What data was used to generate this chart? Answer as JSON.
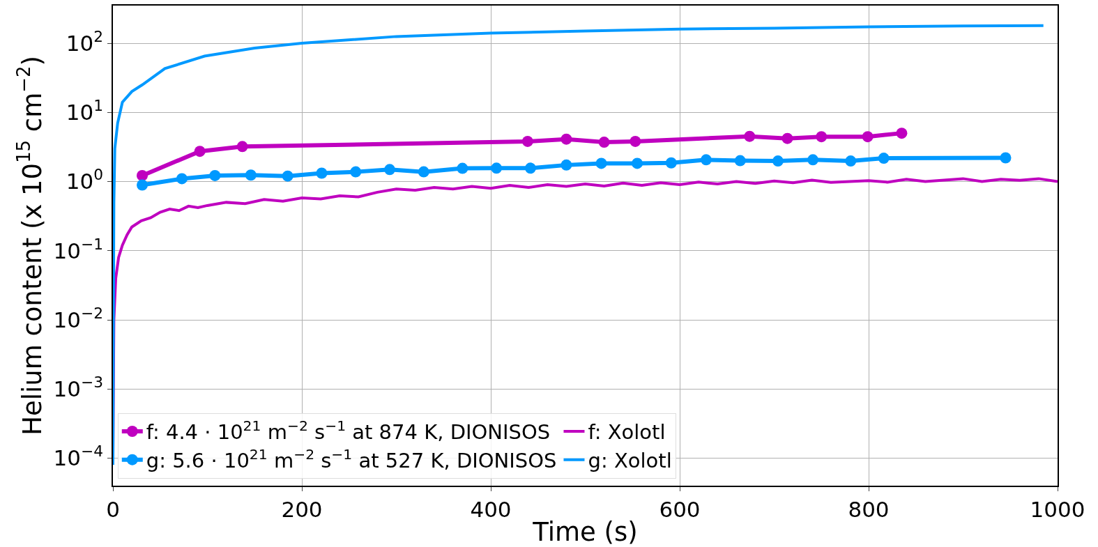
{
  "chart_data": {
    "type": "line",
    "xlabel": "Time (s)",
    "ylabel": "Helium content (x 10$^{15}$ cm$^{−2}$)",
    "xlim": [
      0,
      1000
    ],
    "xticks": [
      0,
      200,
      400,
      600,
      800,
      1000
    ],
    "ylim": [
      4e-05,
      350
    ],
    "yticks": [
      {
        "value": 0.0001,
        "label": "10$^{−4}$"
      },
      {
        "value": 0.001,
        "label": "10$^{−3}$"
      },
      {
        "value": 0.01,
        "label": "10$^{−2}$"
      },
      {
        "value": 0.1,
        "label": "10$^{−1}$"
      },
      {
        "value": 1,
        "label": "10$^{0}$"
      },
      {
        "value": 10,
        "label": "10$^{1}$"
      },
      {
        "value": 100,
        "label": "10$^{2}$"
      }
    ],
    "log": "y",
    "grid": true,
    "legend": "bottom left",
    "series": [
      {
        "name": "f: 4.4 · 10$^{21}$ m$^{−2}$ s$^{−1}$ at 874 K, DIONISOS",
        "color": "#bf00bf",
        "marker": "circle",
        "x": [
          31,
          92,
          137,
          439,
          480,
          520,
          553,
          674,
          714,
          750,
          799,
          835
        ],
        "values": [
          1.22,
          2.73,
          3.2,
          3.8,
          4.1,
          3.7,
          3.8,
          4.5,
          4.2,
          4.45,
          4.45,
          5.0
        ]
      },
      {
        "name": "f: Xolotl",
        "color": "#bf00bf",
        "marker": "none",
        "x": [
          0,
          1,
          3,
          6,
          10,
          15,
          20,
          30,
          40,
          50,
          60,
          70,
          80,
          90,
          100,
          120,
          140,
          160,
          180,
          200,
          220,
          240,
          260,
          280,
          300,
          320,
          340,
          360,
          380,
          400,
          420,
          440,
          460,
          480,
          500,
          520,
          540,
          560,
          580,
          600,
          620,
          640,
          660,
          680,
          700,
          720,
          740,
          760,
          780,
          800,
          820,
          840,
          860,
          880,
          900,
          920,
          940,
          960,
          980,
          1000
        ],
        "values": [
          0.0001,
          0.01,
          0.04,
          0.08,
          0.12,
          0.17,
          0.22,
          0.27,
          0.3,
          0.36,
          0.4,
          0.38,
          0.44,
          0.42,
          0.45,
          0.5,
          0.48,
          0.55,
          0.52,
          0.58,
          0.56,
          0.62,
          0.6,
          0.7,
          0.78,
          0.75,
          0.82,
          0.78,
          0.85,
          0.8,
          0.88,
          0.82,
          0.9,
          0.85,
          0.92,
          0.86,
          0.95,
          0.88,
          0.96,
          0.9,
          0.98,
          0.92,
          1.0,
          0.94,
          1.02,
          0.96,
          1.05,
          0.97,
          1.0,
          1.03,
          0.98,
          1.08,
          1.0,
          1.05,
          1.1,
          1.0,
          1.08,
          1.04,
          1.1,
          1.0
        ]
      },
      {
        "name": "g: 5.6 · 10$^{21}$ m$^{−2}$ s$^{−1}$ at 527 K, DIONISOS",
        "color": "#0099ff",
        "marker": "circle",
        "x": [
          31,
          73,
          108,
          146,
          185,
          221,
          257,
          293,
          329,
          370,
          406,
          442,
          480,
          517,
          555,
          591,
          628,
          664,
          704,
          741,
          781,
          816,
          945
        ],
        "values": [
          0.89,
          1.1,
          1.22,
          1.24,
          1.2,
          1.32,
          1.38,
          1.49,
          1.38,
          1.55,
          1.56,
          1.56,
          1.73,
          1.83,
          1.83,
          1.86,
          2.06,
          2.0,
          1.98,
          2.06,
          1.98,
          2.17,
          2.2
        ]
      },
      {
        "name": "g: Xolotl",
        "color": "#0099ff",
        "marker": "none",
        "x": [
          0,
          0.5,
          1,
          2,
          5,
          10,
          20,
          31,
          55,
          97,
          150,
          200,
          300,
          400,
          500,
          600,
          700,
          800,
          900,
          985
        ],
        "values": [
          8e-05,
          0.01,
          0.5,
          3,
          7,
          14,
          20,
          25,
          43,
          65,
          85,
          100,
          125,
          140,
          150,
          160,
          165,
          172,
          178,
          180
        ]
      }
    ]
  }
}
